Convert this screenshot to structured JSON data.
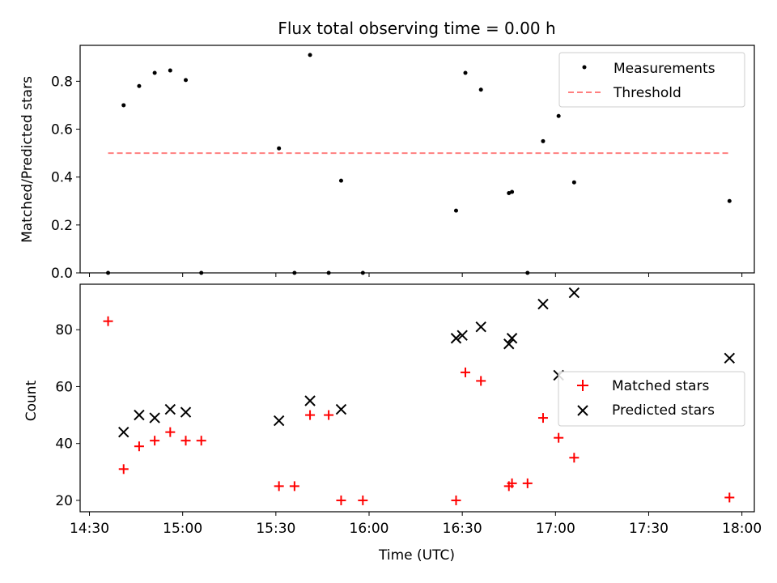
{
  "title": "Flux total observing time = 0.00 h",
  "xlabel": "Time (UTC)",
  "x_ticks": [
    "14:30",
    "15:00",
    "15:30",
    "16:00",
    "16:30",
    "17:00",
    "17:30",
    "18:00"
  ],
  "colors": {
    "measurement": "#000000",
    "threshold": "#ff7f7f",
    "matched": "#ff0000",
    "predicted": "#000000"
  },
  "chart_data": [
    {
      "type": "scatter",
      "ylabel": "Matched/Predicted stars",
      "xlim": [
        "14:27",
        "18:04"
      ],
      "ylim": [
        0,
        0.95
      ],
      "y_ticks": [
        "0.0",
        "0.2",
        "0.4",
        "0.6",
        "0.8"
      ],
      "legend_position": "top-right",
      "series": [
        {
          "name": "Measurements",
          "marker": "dot",
          "x": [
            "14:36",
            "14:41",
            "14:46",
            "14:51",
            "14:56",
            "15:01",
            "15:06",
            "15:31",
            "15:36",
            "15:41",
            "15:47",
            "15:51",
            "15:58",
            "16:28",
            "16:31",
            "16:36",
            "16:45",
            "16:46",
            "16:51",
            "16:56",
            "17:01",
            "17:06",
            "17:56"
          ],
          "y": [
            0.0,
            0.7,
            0.78,
            0.835,
            0.845,
            0.805,
            0.0,
            0.52,
            0.0,
            0.91,
            0.0,
            0.385,
            0.0,
            0.26,
            0.835,
            0.765,
            0.333,
            0.338,
            0.0,
            0.55,
            0.655,
            0.378,
            0.3
          ]
        },
        {
          "name": "Threshold",
          "type": "line",
          "style": "dashed",
          "x": [
            "14:36",
            "17:56"
          ],
          "y": [
            0.5,
            0.5
          ]
        }
      ]
    },
    {
      "type": "scatter",
      "ylabel": "Count",
      "xlim": [
        "14:27",
        "18:04"
      ],
      "ylim": [
        16,
        96
      ],
      "y_ticks": [
        "20",
        "40",
        "60",
        "80"
      ],
      "legend_position": "center-right",
      "series": [
        {
          "name": "Matched stars",
          "marker": "+",
          "x": [
            "14:36",
            "14:41",
            "14:46",
            "14:51",
            "14:56",
            "15:01",
            "15:06",
            "15:31",
            "15:36",
            "15:41",
            "15:47",
            "15:51",
            "15:58",
            "16:28",
            "16:31",
            "16:36",
            "16:45",
            "16:46",
            "16:51",
            "16:56",
            "17:01",
            "17:06",
            "17:56"
          ],
          "y": [
            83,
            31,
            39,
            41,
            44,
            41,
            41,
            25,
            25,
            50,
            50,
            20,
            20,
            20,
            65,
            62,
            25,
            26,
            26,
            49,
            42,
            35,
            21
          ]
        },
        {
          "name": "Predicted stars",
          "marker": "x",
          "x": [
            "14:41",
            "14:46",
            "14:51",
            "14:56",
            "15:01",
            "15:31",
            "15:41",
            "15:51",
            "16:28",
            "16:30",
            "16:36",
            "16:45",
            "16:46",
            "16:56",
            "17:01",
            "17:06",
            "17:56"
          ],
          "y": [
            44,
            50,
            49,
            52,
            51,
            48,
            55,
            52,
            77,
            78,
            81,
            75,
            77,
            89,
            64,
            93,
            70
          ]
        }
      ]
    }
  ]
}
